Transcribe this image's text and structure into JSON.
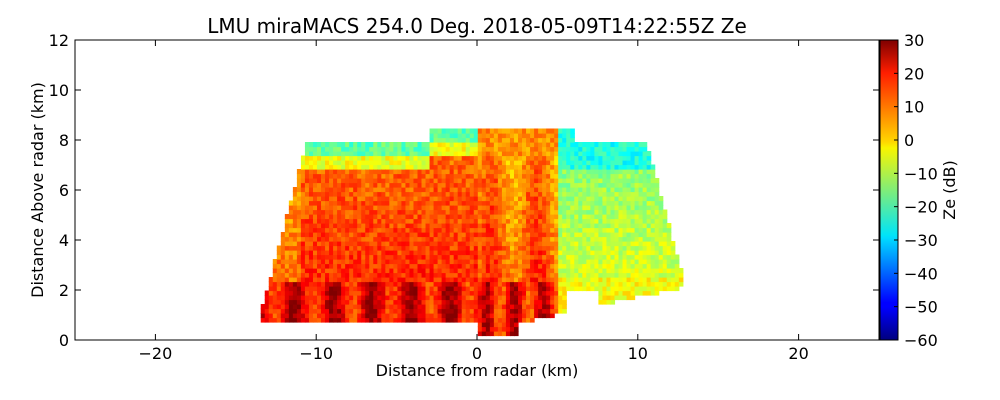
{
  "chart_data": {
    "type": "heatmap",
    "title": "LMU miraMACS 254.0 Deg. 2018-05-09T14:22:55Z  Ze",
    "xlabel": "Distance from radar (km)",
    "ylabel": "Distance Above radar  (km)",
    "xlim": [
      -25,
      25
    ],
    "ylim": [
      0,
      12
    ],
    "xticks": [
      "−20",
      "−10",
      "0",
      "10",
      "20"
    ],
    "xtick_values": [
      -20,
      -10,
      0,
      10,
      20
    ],
    "yticks": [
      "0",
      "2",
      "4",
      "6",
      "8",
      "10",
      "12"
    ],
    "ytick_values": [
      0,
      2,
      4,
      6,
      8,
      10,
      12
    ],
    "colorbar": {
      "label": "Ze (dB)",
      "range": [
        -60,
        30
      ],
      "ticks": [
        "30",
        "20",
        "10",
        "0",
        "−10",
        "−20",
        "−30",
        "−40",
        "−50",
        "−60"
      ],
      "tick_values": [
        30,
        20,
        10,
        0,
        -10,
        -20,
        -30,
        -40,
        -50,
        -60
      ],
      "colormap": "jet"
    },
    "scan": {
      "azimuth_deg": 254.0,
      "time": "2018-05-09T14:22:55Z",
      "approx_extent_km": {
        "x_min": -14,
        "x_max": 13.7,
        "top": 8.0
      },
      "reflectivity_notes": "strong echoes (10–30 dB) below ~6 km on left and near ground around x 0–5 km; weaker echoes (−30 to −10 dB) in upper layer and right side"
    }
  }
}
